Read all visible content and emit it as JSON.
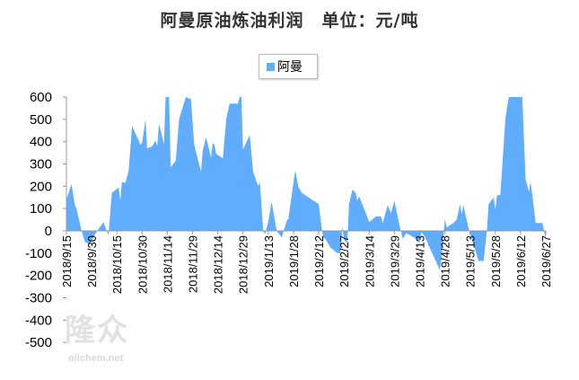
{
  "title": "阿曼原油炼油利润　单位：元/吨",
  "watermark": {
    "cn": "隆众",
    "en": "oilchem.net"
  },
  "colors": {
    "fill": "#5fadfc",
    "axis": "#999999"
  },
  "chart_data": {
    "type": "area",
    "title": "阿曼原油炼油利润　单位：元/吨",
    "legend": {
      "position": "top-center",
      "entries": [
        "阿曼"
      ]
    },
    "grid": false,
    "ylim": [
      -500,
      600
    ],
    "yticks": [
      600,
      500,
      400,
      300,
      200,
      100,
      0,
      -100,
      -200,
      -300,
      -400,
      -500
    ],
    "xlim": [
      "2018-09-15",
      "2019-06-27"
    ],
    "xtick_labels": [
      "2018/9/15",
      "2018/9/30",
      "2018/10/15",
      "2018/10/30",
      "2018/11/14",
      "2018/11/29",
      "2018/12/14",
      "2018/12/29",
      "2019/1/13",
      "2019/1/28",
      "2019/2/12",
      "2019/2/27",
      "2019/3/14",
      "2019/3/29",
      "2019/4/13",
      "2019/4/28",
      "2019/5/13",
      "2019/5/28",
      "2019/6/12",
      "2019/6/27"
    ],
    "series": [
      {
        "name": "阿曼",
        "points": [
          [
            "2018-09-15",
            140
          ],
          [
            "2018-09-18",
            210
          ],
          [
            "2018-09-20",
            115
          ],
          [
            "2018-09-21",
            100
          ],
          [
            "2018-09-24",
            0
          ],
          [
            "2018-09-26",
            -50
          ],
          [
            "2018-09-29",
            -60
          ],
          [
            "2018-10-02",
            -15
          ],
          [
            "2018-10-07",
            40
          ],
          [
            "2018-10-09",
            0
          ],
          [
            "2018-10-10",
            -20
          ],
          [
            "2018-10-12",
            170
          ],
          [
            "2018-10-16",
            195
          ],
          [
            "2018-10-17",
            135
          ],
          [
            "2018-10-18",
            220
          ],
          [
            "2018-10-20",
            215
          ],
          [
            "2018-10-22",
            270
          ],
          [
            "2018-10-24",
            470
          ],
          [
            "2018-10-27",
            420
          ],
          [
            "2018-10-28",
            405
          ],
          [
            "2018-10-29",
            385
          ],
          [
            "2018-10-30",
            395
          ],
          [
            "2018-11-01",
            500
          ],
          [
            "2018-11-02",
            370
          ],
          [
            "2018-11-05",
            380
          ],
          [
            "2018-11-07",
            405
          ],
          [
            "2018-11-08",
            380
          ],
          [
            "2018-11-09",
            480
          ],
          [
            "2018-11-12",
            390
          ],
          [
            "2018-11-13",
            600
          ],
          [
            "2018-11-15",
            600
          ],
          [
            "2018-11-16",
            285
          ],
          [
            "2018-11-19",
            315
          ],
          [
            "2018-11-21",
            500
          ],
          [
            "2018-11-25",
            600
          ],
          [
            "2018-11-28",
            590
          ],
          [
            "2018-11-30",
            385
          ],
          [
            "2018-12-04",
            265
          ],
          [
            "2018-12-05",
            360
          ],
          [
            "2018-12-07",
            420
          ],
          [
            "2018-12-10",
            330
          ],
          [
            "2018-12-11",
            395
          ],
          [
            "2018-12-12",
            385
          ],
          [
            "2018-12-13",
            345
          ],
          [
            "2018-12-17",
            325
          ],
          [
            "2018-12-19",
            500
          ],
          [
            "2018-12-21",
            570
          ],
          [
            "2018-12-26",
            570
          ],
          [
            "2018-12-27",
            600
          ],
          [
            "2018-12-28",
            600
          ],
          [
            "2018-12-29",
            365
          ],
          [
            "2019-01-02",
            430
          ],
          [
            "2019-01-04",
            265
          ],
          [
            "2019-01-07",
            200
          ],
          [
            "2019-01-08",
            220
          ],
          [
            "2019-01-10",
            0
          ],
          [
            "2019-01-11",
            -15
          ],
          [
            "2019-01-13",
            40
          ],
          [
            "2019-01-15",
            130
          ],
          [
            "2019-01-17",
            45
          ],
          [
            "2019-01-18",
            0
          ],
          [
            "2019-01-21",
            -30
          ],
          [
            "2019-01-24",
            45
          ],
          [
            "2019-01-25",
            55
          ],
          [
            "2019-01-29",
            270
          ],
          [
            "2019-01-31",
            195
          ],
          [
            "2019-02-02",
            170
          ],
          [
            "2019-02-12",
            120
          ],
          [
            "2019-02-14",
            0
          ],
          [
            "2019-02-15",
            -35
          ],
          [
            "2019-02-16",
            -35
          ],
          [
            "2019-02-19",
            -75
          ],
          [
            "2019-02-23",
            -100
          ],
          [
            "2019-02-25",
            -100
          ],
          [
            "2019-02-26",
            20
          ],
          [
            "2019-02-27",
            -40
          ],
          [
            "2019-03-01",
            -55
          ],
          [
            "2019-03-02",
            120
          ],
          [
            "2019-03-04",
            185
          ],
          [
            "2019-03-06",
            170
          ],
          [
            "2019-03-07",
            135
          ],
          [
            "2019-03-08",
            155
          ],
          [
            "2019-03-12",
            80
          ],
          [
            "2019-03-14",
            40
          ],
          [
            "2019-03-18",
            65
          ],
          [
            "2019-03-21",
            65
          ],
          [
            "2019-03-22",
            35
          ],
          [
            "2019-03-25",
            115
          ],
          [
            "2019-03-27",
            80
          ],
          [
            "2019-03-29",
            135
          ],
          [
            "2019-04-01",
            25
          ],
          [
            "2019-04-03",
            -35
          ],
          [
            "2019-04-05",
            -10
          ],
          [
            "2019-04-11",
            -35
          ],
          [
            "2019-04-13",
            -55
          ],
          [
            "2019-04-14",
            -5
          ],
          [
            "2019-04-16",
            -25
          ],
          [
            "2019-04-21",
            -110
          ],
          [
            "2019-04-25",
            -175
          ],
          [
            "2019-04-26",
            -120
          ],
          [
            "2019-04-28",
            55
          ],
          [
            "2019-04-29",
            15
          ],
          [
            "2019-05-03",
            35
          ],
          [
            "2019-05-05",
            50
          ],
          [
            "2019-05-07",
            120
          ],
          [
            "2019-05-08",
            75
          ],
          [
            "2019-05-09",
            115
          ],
          [
            "2019-05-12",
            15
          ],
          [
            "2019-05-14",
            -35
          ],
          [
            "2019-05-18",
            -135
          ],
          [
            "2019-05-21",
            -135
          ],
          [
            "2019-05-23",
            0
          ],
          [
            "2019-05-24",
            120
          ],
          [
            "2019-05-27",
            150
          ],
          [
            "2019-05-28",
            95
          ],
          [
            "2019-05-29",
            160
          ],
          [
            "2019-05-31",
            160
          ],
          [
            "2019-06-03",
            505
          ],
          [
            "2019-06-05",
            600
          ],
          [
            "2019-06-13",
            600
          ],
          [
            "2019-06-15",
            230
          ],
          [
            "2019-06-17",
            175
          ],
          [
            "2019-06-18",
            220
          ],
          [
            "2019-06-21",
            35
          ],
          [
            "2019-06-25",
            35
          ],
          [
            "2019-06-27",
            -40
          ]
        ]
      }
    ]
  }
}
